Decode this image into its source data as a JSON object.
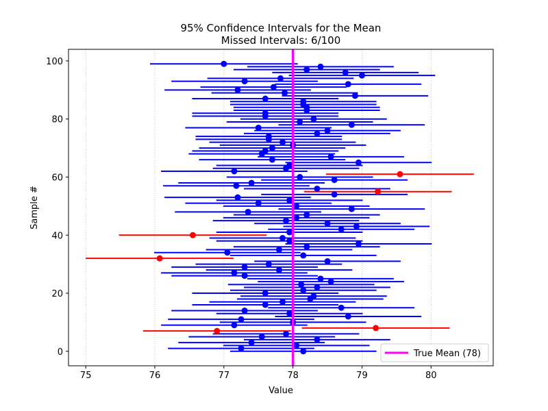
{
  "chart_data": {
    "type": "errorbar",
    "title": "95% Confidence Intervals for the Mean",
    "subtitle": "Missed Intervals: 6/100",
    "xlabel": "Value",
    "ylabel": "Sample #",
    "xlim": [
      74.75,
      80.9
    ],
    "ylim": [
      -5,
      104
    ],
    "xticks": [
      "75",
      "76",
      "77",
      "78",
      "79",
      "80"
    ],
    "yticks": [
      "0",
      "20",
      "40",
      "60",
      "80",
      "100"
    ],
    "xgrid": "dotted-vertical",
    "true_mean": 78,
    "legend": {
      "label": "True Mean (78)",
      "placement": "lower-right"
    },
    "colors": {
      "hit": "#0000ff",
      "miss": "#ff0000",
      "true_mean": "#ff00ff"
    },
    "intervals": [
      {
        "sample": 0,
        "mean": 78.15,
        "lower": 77.09,
        "upper": 79.21,
        "missed": false
      },
      {
        "sample": 1,
        "mean": 77.25,
        "lower": 76.19,
        "upper": 78.31,
        "missed": false
      },
      {
        "sample": 2,
        "mean": 78.05,
        "lower": 76.99,
        "upper": 79.11,
        "missed": false
      },
      {
        "sample": 3,
        "mean": 77.4,
        "lower": 76.34,
        "upper": 78.46,
        "missed": false
      },
      {
        "sample": 4,
        "mean": 78.35,
        "lower": 77.29,
        "upper": 79.41,
        "missed": false
      },
      {
        "sample": 5,
        "mean": 77.55,
        "lower": 76.49,
        "upper": 78.61,
        "missed": false
      },
      {
        "sample": 6,
        "mean": 77.9,
        "lower": 76.84,
        "upper": 78.96,
        "missed": false
      },
      {
        "sample": 7,
        "mean": 76.9,
        "lower": 75.83,
        "upper": 77.97,
        "missed": true
      },
      {
        "sample": 8,
        "mean": 79.2,
        "lower": 78.13,
        "upper": 80.27,
        "missed": true
      },
      {
        "sample": 9,
        "mean": 77.15,
        "lower": 76.09,
        "upper": 78.21,
        "missed": false
      },
      {
        "sample": 10,
        "mean": 78.0,
        "lower": 76.94,
        "upper": 79.06,
        "missed": false
      },
      {
        "sample": 11,
        "mean": 77.25,
        "lower": 76.19,
        "upper": 78.31,
        "missed": false
      },
      {
        "sample": 12,
        "mean": 78.8,
        "lower": 77.74,
        "upper": 79.86,
        "missed": false
      },
      {
        "sample": 13,
        "mean": 77.95,
        "lower": 76.89,
        "upper": 79.01,
        "missed": false
      },
      {
        "sample": 14,
        "mean": 77.3,
        "lower": 76.24,
        "upper": 78.36,
        "missed": false
      },
      {
        "sample": 15,
        "mean": 78.7,
        "lower": 77.64,
        "upper": 79.76,
        "missed": false
      },
      {
        "sample": 16,
        "mean": 77.6,
        "lower": 76.54,
        "upper": 78.66,
        "missed": false
      },
      {
        "sample": 17,
        "mean": 77.85,
        "lower": 76.79,
        "upper": 78.91,
        "missed": false
      },
      {
        "sample": 18,
        "mean": 78.25,
        "lower": 77.19,
        "upper": 79.31,
        "missed": false
      },
      {
        "sample": 19,
        "mean": 78.3,
        "lower": 77.24,
        "upper": 79.36,
        "missed": false
      },
      {
        "sample": 20,
        "mean": 77.6,
        "lower": 76.54,
        "upper": 78.66,
        "missed": false
      },
      {
        "sample": 21,
        "mean": 78.15,
        "lower": 77.09,
        "upper": 79.21,
        "missed": false
      },
      {
        "sample": 22,
        "mean": 78.35,
        "lower": 77.29,
        "upper": 79.41,
        "missed": false
      },
      {
        "sample": 23,
        "mean": 78.12,
        "lower": 77.06,
        "upper": 79.18,
        "missed": false
      },
      {
        "sample": 24,
        "mean": 78.55,
        "lower": 77.49,
        "upper": 79.61,
        "missed": false
      },
      {
        "sample": 25,
        "mean": 78.4,
        "lower": 77.34,
        "upper": 79.46,
        "missed": false
      },
      {
        "sample": 26,
        "mean": 77.3,
        "lower": 76.24,
        "upper": 78.36,
        "missed": false
      },
      {
        "sample": 27,
        "mean": 77.15,
        "lower": 76.09,
        "upper": 78.21,
        "missed": false
      },
      {
        "sample": 28,
        "mean": 77.8,
        "lower": 76.74,
        "upper": 78.86,
        "missed": false
      },
      {
        "sample": 29,
        "mean": 77.3,
        "lower": 76.24,
        "upper": 78.36,
        "missed": false
      },
      {
        "sample": 30,
        "mean": 77.65,
        "lower": 76.59,
        "upper": 78.71,
        "missed": false
      },
      {
        "sample": 31,
        "mean": 78.5,
        "lower": 77.44,
        "upper": 79.56,
        "missed": false
      },
      {
        "sample": 32,
        "mean": 76.07,
        "lower": 75.0,
        "upper": 77.14,
        "missed": true
      },
      {
        "sample": 33,
        "mean": 78.15,
        "lower": 77.09,
        "upper": 79.21,
        "missed": false
      },
      {
        "sample": 34,
        "mean": 77.05,
        "lower": 75.99,
        "upper": 78.11,
        "missed": false
      },
      {
        "sample": 35,
        "mean": 77.8,
        "lower": 76.74,
        "upper": 78.86,
        "missed": false
      },
      {
        "sample": 36,
        "mean": 78.2,
        "lower": 77.14,
        "upper": 79.26,
        "missed": false
      },
      {
        "sample": 37,
        "mean": 78.95,
        "lower": 77.89,
        "upper": 80.01,
        "missed": false
      },
      {
        "sample": 38,
        "mean": 77.95,
        "lower": 76.89,
        "upper": 79.01,
        "missed": false
      },
      {
        "sample": 39,
        "mean": 77.85,
        "lower": 76.79,
        "upper": 78.91,
        "missed": false
      },
      {
        "sample": 40,
        "mean": 76.55,
        "lower": 75.48,
        "upper": 77.62,
        "missed": true
      },
      {
        "sample": 41,
        "mean": 77.95,
        "lower": 76.89,
        "upper": 79.01,
        "missed": false
      },
      {
        "sample": 42,
        "mean": 78.7,
        "lower": 77.64,
        "upper": 79.76,
        "missed": false
      },
      {
        "sample": 43,
        "mean": 78.92,
        "lower": 77.86,
        "upper": 79.98,
        "missed": false
      },
      {
        "sample": 44,
        "mean": 78.5,
        "lower": 77.44,
        "upper": 79.56,
        "missed": false
      },
      {
        "sample": 45,
        "mean": 77.9,
        "lower": 76.84,
        "upper": 78.96,
        "missed": false
      },
      {
        "sample": 46,
        "mean": 78.05,
        "lower": 76.99,
        "upper": 79.11,
        "missed": false
      },
      {
        "sample": 47,
        "mean": 78.2,
        "lower": 77.14,
        "upper": 79.26,
        "missed": false
      },
      {
        "sample": 48,
        "mean": 77.35,
        "lower": 76.29,
        "upper": 78.41,
        "missed": false
      },
      {
        "sample": 49,
        "mean": 78.85,
        "lower": 77.79,
        "upper": 79.91,
        "missed": false
      },
      {
        "sample": 50,
        "mean": 78.05,
        "lower": 76.99,
        "upper": 79.11,
        "missed": false
      },
      {
        "sample": 51,
        "mean": 77.5,
        "lower": 76.44,
        "upper": 78.56,
        "missed": false
      },
      {
        "sample": 52,
        "mean": 77.95,
        "lower": 76.89,
        "upper": 79.01,
        "missed": false
      },
      {
        "sample": 53,
        "mean": 77.2,
        "lower": 76.14,
        "upper": 78.26,
        "missed": false
      },
      {
        "sample": 54,
        "mean": 78.6,
        "lower": 77.54,
        "upper": 79.66,
        "missed": false
      },
      {
        "sample": 55,
        "mean": 79.23,
        "lower": 78.16,
        "upper": 80.3,
        "missed": true
      },
      {
        "sample": 56,
        "mean": 78.35,
        "lower": 77.29,
        "upper": 79.41,
        "missed": false
      },
      {
        "sample": 57,
        "mean": 77.18,
        "lower": 76.12,
        "upper": 78.24,
        "missed": false
      },
      {
        "sample": 58,
        "mean": 77.4,
        "lower": 76.34,
        "upper": 78.46,
        "missed": false
      },
      {
        "sample": 59,
        "mean": 78.6,
        "lower": 77.54,
        "upper": 79.66,
        "missed": false
      },
      {
        "sample": 60,
        "mean": 78.1,
        "lower": 77.04,
        "upper": 79.16,
        "missed": false
      },
      {
        "sample": 61,
        "mean": 79.55,
        "lower": 78.48,
        "upper": 80.62,
        "missed": true
      },
      {
        "sample": 62,
        "mean": 77.15,
        "lower": 76.09,
        "upper": 78.21,
        "missed": false
      },
      {
        "sample": 63,
        "mean": 77.9,
        "lower": 76.84,
        "upper": 78.96,
        "missed": false
      },
      {
        "sample": 64,
        "mean": 77.95,
        "lower": 76.89,
        "upper": 79.01,
        "missed": false
      },
      {
        "sample": 65,
        "mean": 78.95,
        "lower": 77.89,
        "upper": 80.01,
        "missed": false
      },
      {
        "sample": 66,
        "mean": 77.7,
        "lower": 76.64,
        "upper": 78.76,
        "missed": false
      },
      {
        "sample": 67,
        "mean": 78.55,
        "lower": 77.49,
        "upper": 79.61,
        "missed": false
      },
      {
        "sample": 68,
        "mean": 77.55,
        "lower": 76.49,
        "upper": 78.61,
        "missed": false
      },
      {
        "sample": 69,
        "mean": 77.6,
        "lower": 76.54,
        "upper": 78.66,
        "missed": false
      },
      {
        "sample": 70,
        "mean": 77.7,
        "lower": 76.64,
        "upper": 78.76,
        "missed": false
      },
      {
        "sample": 71,
        "mean": 78.0,
        "lower": 76.94,
        "upper": 79.06,
        "missed": false
      },
      {
        "sample": 72,
        "mean": 77.85,
        "lower": 76.79,
        "upper": 78.91,
        "missed": false
      },
      {
        "sample": 73,
        "mean": 77.65,
        "lower": 76.59,
        "upper": 78.71,
        "missed": false
      },
      {
        "sample": 74,
        "mean": 77.65,
        "lower": 76.59,
        "upper": 78.71,
        "missed": false
      },
      {
        "sample": 75,
        "mean": 78.35,
        "lower": 77.29,
        "upper": 79.41,
        "missed": false
      },
      {
        "sample": 76,
        "mean": 78.5,
        "lower": 77.44,
        "upper": 79.56,
        "missed": false
      },
      {
        "sample": 77,
        "mean": 77.5,
        "lower": 76.44,
        "upper": 78.56,
        "missed": false
      },
      {
        "sample": 78,
        "mean": 78.85,
        "lower": 77.79,
        "upper": 79.91,
        "missed": false
      },
      {
        "sample": 79,
        "mean": 78.1,
        "lower": 77.04,
        "upper": 79.16,
        "missed": false
      },
      {
        "sample": 80,
        "mean": 78.3,
        "lower": 77.24,
        "upper": 79.36,
        "missed": false
      },
      {
        "sample": 81,
        "mean": 77.6,
        "lower": 76.54,
        "upper": 78.66,
        "missed": false
      },
      {
        "sample": 82,
        "mean": 77.6,
        "lower": 76.54,
        "upper": 78.66,
        "missed": false
      },
      {
        "sample": 83,
        "mean": 78.2,
        "lower": 77.14,
        "upper": 79.26,
        "missed": false
      },
      {
        "sample": 84,
        "mean": 78.2,
        "lower": 77.14,
        "upper": 79.26,
        "missed": false
      },
      {
        "sample": 85,
        "mean": 78.15,
        "lower": 77.09,
        "upper": 79.21,
        "missed": false
      },
      {
        "sample": 86,
        "mean": 78.15,
        "lower": 77.09,
        "upper": 79.21,
        "missed": false
      },
      {
        "sample": 87,
        "mean": 77.6,
        "lower": 76.54,
        "upper": 78.66,
        "missed": false
      },
      {
        "sample": 88,
        "mean": 78.9,
        "lower": 77.84,
        "upper": 79.96,
        "missed": false
      },
      {
        "sample": 89,
        "mean": 77.88,
        "lower": 76.82,
        "upper": 78.94,
        "missed": false
      },
      {
        "sample": 90,
        "mean": 77.2,
        "lower": 76.14,
        "upper": 78.26,
        "missed": false
      },
      {
        "sample": 91,
        "mean": 77.72,
        "lower": 76.66,
        "upper": 78.78,
        "missed": false
      },
      {
        "sample": 92,
        "mean": 78.8,
        "lower": 77.74,
        "upper": 79.86,
        "missed": false
      },
      {
        "sample": 93,
        "mean": 77.3,
        "lower": 76.24,
        "upper": 78.36,
        "missed": false
      },
      {
        "sample": 94,
        "mean": 77.82,
        "lower": 76.76,
        "upper": 78.88,
        "missed": false
      },
      {
        "sample": 95,
        "mean": 79.0,
        "lower": 77.94,
        "upper": 80.06,
        "missed": false
      },
      {
        "sample": 96,
        "mean": 78.76,
        "lower": 77.7,
        "upper": 79.82,
        "missed": false
      },
      {
        "sample": 97,
        "mean": 78.2,
        "lower": 77.14,
        "upper": 79.26,
        "missed": false
      },
      {
        "sample": 98,
        "mean": 78.4,
        "lower": 77.34,
        "upper": 79.46,
        "missed": false
      },
      {
        "sample": 99,
        "mean": 77.0,
        "lower": 75.93,
        "upper": 78.07,
        "missed": false
      }
    ]
  }
}
